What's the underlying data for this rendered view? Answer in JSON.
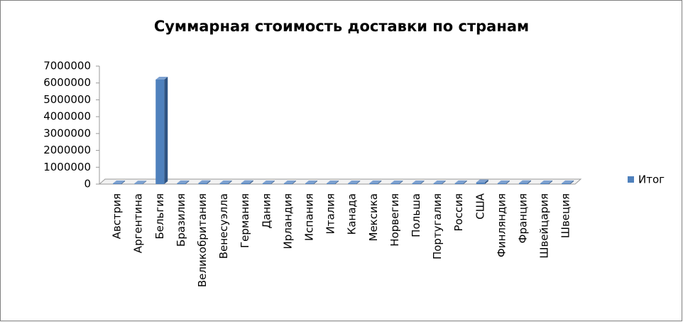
{
  "chart_data": {
    "type": "bar3d",
    "title": "Суммарная стоимость доставки  по странам",
    "categories": [
      "Австрия",
      "Аргентина",
      "Бельгия",
      "Бразилия",
      "Великобритания",
      "Венесуэлла",
      "Германия",
      "Дания",
      "Ирландия",
      "Испания",
      "Италия",
      "Канада",
      "Мексика",
      "Норвегия",
      "Польша",
      "Португалия",
      "Россия",
      "США",
      "Финляндия",
      "Франция",
      "Швейцария",
      "Швеция"
    ],
    "series": [
      {
        "name": "Итог",
        "color": "#4f81bd",
        "values": [
          40000,
          30000,
          6200000,
          50000,
          60000,
          50000,
          60000,
          40000,
          40000,
          40000,
          40000,
          40000,
          50000,
          40000,
          40000,
          40000,
          50000,
          100000,
          50000,
          60000,
          50000,
          50000
        ]
      }
    ],
    "ylim": [
      0,
      7000000
    ],
    "yticks": [
      0,
      1000000,
      2000000,
      3000000,
      4000000,
      5000000,
      6000000,
      7000000
    ],
    "grid": false,
    "legend": "right"
  }
}
